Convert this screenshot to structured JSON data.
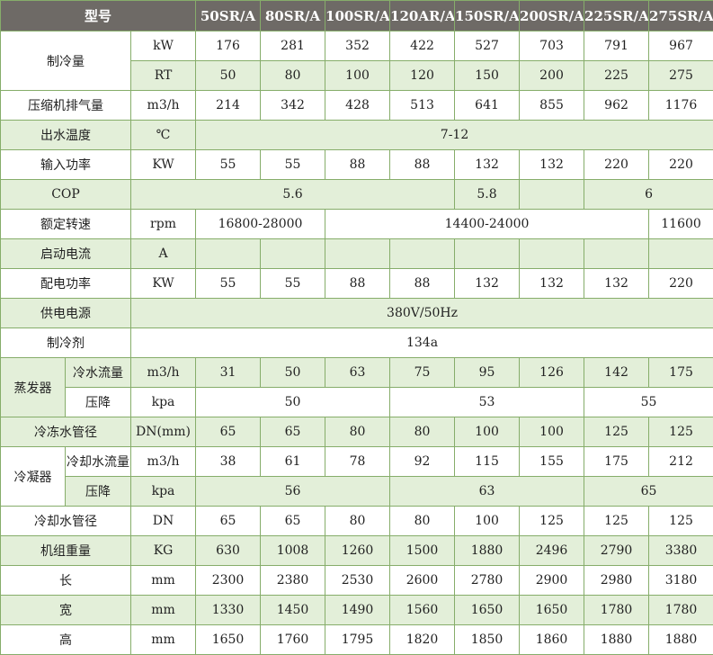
{
  "colors": {
    "header_bg": "#6e6a66",
    "row_alt": "#e3efd9",
    "border": "#86ad6a"
  },
  "header": {
    "label": "型号",
    "models": [
      "50SR/A",
      "80SR/A",
      "100SR/A",
      "120AR/A",
      "150SR/A",
      "200SR/A",
      "225SR/A",
      "275SR/A"
    ]
  },
  "rows": [
    [
      {
        "t": "制冷量",
        "cs": 2,
        "rs": 2
      },
      {
        "t": "kW"
      },
      {
        "t": "176"
      },
      {
        "t": "281"
      },
      {
        "t": "352"
      },
      {
        "t": "422"
      },
      {
        "t": "527"
      },
      {
        "t": "703"
      },
      {
        "t": "791"
      },
      {
        "t": "967"
      }
    ],
    [
      {
        "t": "RT"
      },
      {
        "t": "50"
      },
      {
        "t": "80"
      },
      {
        "t": "100"
      },
      {
        "t": "120"
      },
      {
        "t": "150"
      },
      {
        "t": "200"
      },
      {
        "t": "225"
      },
      {
        "t": "275"
      }
    ],
    [
      {
        "t": "压缩机排气量",
        "cs": 2
      },
      {
        "t": "m3/h"
      },
      {
        "t": "214"
      },
      {
        "t": "342"
      },
      {
        "t": "428"
      },
      {
        "t": "513"
      },
      {
        "t": "641"
      },
      {
        "t": "855"
      },
      {
        "t": "962"
      },
      {
        "t": "1176"
      }
    ],
    [
      {
        "t": "出水温度",
        "cs": 2
      },
      {
        "t": "℃"
      },
      {
        "t": "7-12",
        "cs": 8
      }
    ],
    [
      {
        "t": "输入功率",
        "cs": 2
      },
      {
        "t": "KW"
      },
      {
        "t": "55"
      },
      {
        "t": "55"
      },
      {
        "t": "88"
      },
      {
        "t": "88"
      },
      {
        "t": "132"
      },
      {
        "t": "132"
      },
      {
        "t": "220"
      },
      {
        "t": "220"
      }
    ],
    [
      {
        "t": "COP",
        "cs": 2
      },
      {
        "t": "5.6",
        "cs": 5
      },
      {
        "t": "5.8"
      },
      {
        "t": ""
      },
      {
        "t": "6",
        "cs": 2
      }
    ],
    [
      {
        "t": "额定转速",
        "cs": 2
      },
      {
        "t": "rpm"
      },
      {
        "t": "16800-28000",
        "cs": 2
      },
      {
        "t": "14400-24000",
        "cs": 5
      },
      {
        "t": "11600"
      }
    ],
    [
      {
        "t": "启动电流",
        "cs": 2
      },
      {
        "t": "A"
      },
      {
        "t": ""
      },
      {
        "t": ""
      },
      {
        "t": ""
      },
      {
        "t": ""
      },
      {
        "t": ""
      },
      {
        "t": ""
      },
      {
        "t": ""
      },
      {
        "t": ""
      }
    ],
    [
      {
        "t": "配电功率",
        "cs": 2
      },
      {
        "t": "KW"
      },
      {
        "t": "55"
      },
      {
        "t": "55"
      },
      {
        "t": "88"
      },
      {
        "t": "88"
      },
      {
        "t": "132"
      },
      {
        "t": "132"
      },
      {
        "t": "132"
      },
      {
        "t": "220"
      }
    ],
    [
      {
        "t": "供电电源",
        "cs": 2
      },
      {
        "t": "380V/50Hz",
        "cs": 9
      }
    ],
    [
      {
        "t": "制冷剂",
        "cs": 2
      },
      {
        "t": "134a",
        "cs": 9
      }
    ],
    [
      {
        "t": "蒸发器",
        "rs": 2
      },
      {
        "t": "冷水流量"
      },
      {
        "t": "m3/h"
      },
      {
        "t": "31"
      },
      {
        "t": "50"
      },
      {
        "t": "63"
      },
      {
        "t": "75"
      },
      {
        "t": "95"
      },
      {
        "t": "126"
      },
      {
        "t": "142"
      },
      {
        "t": "175"
      }
    ],
    [
      {
        "t": "压降"
      },
      {
        "t": "kpa"
      },
      {
        "t": "50",
        "cs": 3
      },
      {
        "t": "53",
        "cs": 3
      },
      {
        "t": "55",
        "cs": 2
      }
    ],
    [
      {
        "t": "冷冻水管径",
        "cs": 2
      },
      {
        "t": "DN(mm)"
      },
      {
        "t": "65"
      },
      {
        "t": "65"
      },
      {
        "t": "80"
      },
      {
        "t": "80"
      },
      {
        "t": "100"
      },
      {
        "t": "100"
      },
      {
        "t": "125"
      },
      {
        "t": "125"
      }
    ],
    [
      {
        "t": "冷凝器",
        "rs": 2
      },
      {
        "t": "冷却水流量"
      },
      {
        "t": "m3/h"
      },
      {
        "t": "38"
      },
      {
        "t": "61"
      },
      {
        "t": "78"
      },
      {
        "t": "92"
      },
      {
        "t": "115"
      },
      {
        "t": "155"
      },
      {
        "t": "175"
      },
      {
        "t": "212"
      }
    ],
    [
      {
        "t": "压降"
      },
      {
        "t": "kpa"
      },
      {
        "t": "56",
        "cs": 3
      },
      {
        "t": "63",
        "cs": 3
      },
      {
        "t": "65",
        "cs": 2
      }
    ],
    [
      {
        "t": "冷却水管径",
        "cs": 2
      },
      {
        "t": "DN"
      },
      {
        "t": "65"
      },
      {
        "t": "65"
      },
      {
        "t": "80"
      },
      {
        "t": "80"
      },
      {
        "t": "100"
      },
      {
        "t": "125"
      },
      {
        "t": "125"
      },
      {
        "t": "125"
      }
    ],
    [
      {
        "t": "机组重量",
        "cs": 2
      },
      {
        "t": "KG"
      },
      {
        "t": "630"
      },
      {
        "t": "1008"
      },
      {
        "t": "1260"
      },
      {
        "t": "1500"
      },
      {
        "t": "1880"
      },
      {
        "t": "2496"
      },
      {
        "t": "2790"
      },
      {
        "t": "3380"
      }
    ],
    [
      {
        "t": "长",
        "cs": 2
      },
      {
        "t": "mm"
      },
      {
        "t": "2300"
      },
      {
        "t": "2380"
      },
      {
        "t": "2530"
      },
      {
        "t": "2600"
      },
      {
        "t": "2780"
      },
      {
        "t": "2900"
      },
      {
        "t": "2980"
      },
      {
        "t": "3180"
      }
    ],
    [
      {
        "t": "宽",
        "cs": 2
      },
      {
        "t": "mm"
      },
      {
        "t": "1330"
      },
      {
        "t": "1450"
      },
      {
        "t": "1490"
      },
      {
        "t": "1560"
      },
      {
        "t": "1650"
      },
      {
        "t": "1650"
      },
      {
        "t": "1780"
      },
      {
        "t": "1780"
      }
    ],
    [
      {
        "t": "高",
        "cs": 2
      },
      {
        "t": "mm"
      },
      {
        "t": "1650"
      },
      {
        "t": "1760"
      },
      {
        "t": "1795"
      },
      {
        "t": "1820"
      },
      {
        "t": "1850"
      },
      {
        "t": "1860"
      },
      {
        "t": "1880"
      },
      {
        "t": "1880"
      }
    ]
  ]
}
